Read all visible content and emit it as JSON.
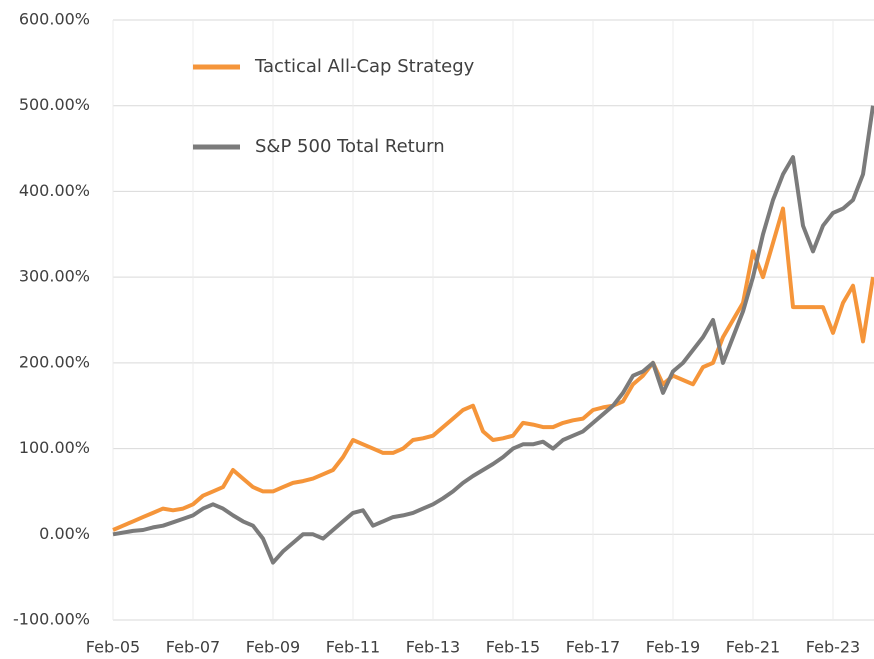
{
  "chart_data": {
    "type": "line",
    "categories": [
      "Feb-05",
      null,
      null,
      null,
      null,
      null,
      null,
      null,
      "Feb-07",
      null,
      null,
      null,
      null,
      null,
      null,
      null,
      "Feb-09",
      null,
      null,
      null,
      null,
      null,
      null,
      null,
      "Feb-11",
      null,
      null,
      null,
      null,
      null,
      null,
      null,
      "Feb-13",
      null,
      null,
      null,
      null,
      null,
      null,
      null,
      "Feb-15",
      null,
      null,
      null,
      null,
      null,
      null,
      null,
      "Feb-17",
      null,
      null,
      null,
      null,
      null,
      null,
      null,
      "Feb-19",
      null,
      null,
      null,
      null,
      null,
      null,
      null,
      "Feb-21",
      null,
      null,
      null,
      null,
      null,
      null,
      null,
      "Feb-23",
      null,
      null,
      null,
      null
    ],
    "series": [
      {
        "name": "Tactical All-Cap Strategy",
        "color": "#f5953a",
        "values": [
          5,
          10,
          15,
          20,
          25,
          30,
          28,
          30,
          35,
          45,
          50,
          55,
          75,
          65,
          55,
          50,
          50,
          55,
          60,
          62,
          65,
          70,
          75,
          90,
          110,
          105,
          100,
          95,
          95,
          100,
          110,
          112,
          115,
          125,
          135,
          145,
          150,
          120,
          110,
          112,
          115,
          130,
          128,
          125,
          125,
          130,
          133,
          135,
          145,
          148,
          150,
          155,
          175,
          185,
          200,
          175,
          185,
          180,
          175,
          195,
          200,
          230,
          250,
          270,
          330,
          300,
          340,
          380,
          265,
          265,
          265,
          265,
          235,
          270,
          290,
          225,
          300
        ]
      },
      {
        "name": "S&P 500 Total Return",
        "color": "#7b7b7b",
        "values": [
          0,
          2,
          4,
          5,
          8,
          10,
          14,
          18,
          22,
          30,
          35,
          30,
          22,
          15,
          10,
          -5,
          -33,
          -20,
          -10,
          0,
          0,
          -5,
          5,
          15,
          25,
          28,
          10,
          15,
          20,
          22,
          25,
          30,
          35,
          42,
          50,
          60,
          68,
          75,
          82,
          90,
          100,
          105,
          105,
          108,
          100,
          110,
          115,
          120,
          130,
          140,
          150,
          165,
          185,
          190,
          200,
          165,
          190,
          200,
          215,
          230,
          250,
          200,
          230,
          260,
          300,
          350,
          390,
          420,
          440,
          360,
          330,
          360,
          375,
          380,
          390,
          420,
          500
        ]
      }
    ],
    "ylim": [
      -100,
      600
    ],
    "yticks": [
      {
        "value": -100,
        "label": "-100.00%"
      },
      {
        "value": 0,
        "label": "0.00%"
      },
      {
        "value": 100,
        "label": "100.00%"
      },
      {
        "value": 200,
        "label": "200.00%"
      },
      {
        "value": 300,
        "label": "300.00%"
      },
      {
        "value": 400,
        "label": "400.00%"
      },
      {
        "value": 500,
        "label": "500.00%"
      },
      {
        "value": 600,
        "label": "600.00%"
      }
    ],
    "grid": true
  }
}
